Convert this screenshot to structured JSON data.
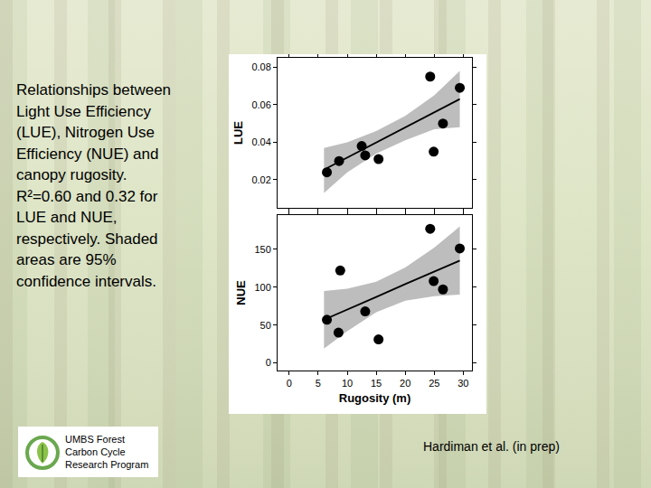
{
  "slide": {
    "caption": [
      "Relationships between",
      "Light Use Efficiency",
      "(LUE), Nitrogen Use",
      "Efficiency (NUE) and",
      "canopy rugosity.",
      "R²=0.60 and 0.32 for",
      "LUE and NUE,",
      "respectively. Shaded",
      "areas are 95%",
      "confidence intervals."
    ],
    "logo": [
      "UMBS Forest",
      "Carbon Cycle",
      "Research Program"
    ],
    "citation": "Hardiman et al. (in prep)"
  },
  "chart_data": [
    {
      "type": "scatter",
      "ylabel": "LUE",
      "color": "#000000",
      "marker": "circle",
      "grid": false,
      "tick_labels": "y",
      "x": [
        6.5,
        8.6,
        12.5,
        13.1,
        15.4,
        24.3,
        24.9,
        26.5,
        29.4
      ],
      "values": [
        0.024,
        0.03,
        0.038,
        0.033,
        0.031,
        0.075,
        0.035,
        0.05,
        0.069
      ],
      "fit_x": [
        6,
        10,
        15,
        20,
        25,
        29.4
      ],
      "fit_values": [
        0.0254,
        0.0318,
        0.0399,
        0.0479,
        0.056,
        0.063
      ],
      "band_lower": [
        0.013,
        0.024,
        0.034,
        0.041,
        0.047,
        0.048
      ],
      "band_upper": [
        0.037,
        0.04,
        0.046,
        0.054,
        0.065,
        0.078
      ],
      "xlim": [
        -2,
        31.5
      ],
      "xticks": [
        0,
        5,
        10,
        15,
        20,
        25,
        30
      ],
      "ylim": [
        0.005,
        0.085
      ],
      "yticks": [
        0.02,
        0.04,
        0.06,
        0.08
      ]
    },
    {
      "type": "scatter",
      "ylabel": "NUE",
      "xlabel": "Rugosity (m)",
      "color": "#000000",
      "marker": "circle",
      "grid": false,
      "x": [
        6.5,
        8.5,
        8.8,
        13.1,
        15.4,
        24.3,
        24.9,
        26.5,
        29.4
      ],
      "values": [
        57,
        40,
        122,
        68,
        31,
        177,
        108,
        97,
        151
      ],
      "fit_x": [
        6,
        10,
        15,
        20,
        25,
        29.4
      ],
      "fit_values": [
        57,
        70,
        87,
        104,
        120,
        135
      ],
      "band_lower": [
        19,
        42,
        67,
        82,
        88,
        90
      ],
      "band_upper": [
        95,
        98,
        107,
        126,
        152,
        180
      ],
      "xlim": [
        -2,
        31.5
      ],
      "xticks": [
        0,
        5,
        10,
        15,
        20,
        25,
        30
      ],
      "ylim": [
        -10,
        195
      ],
      "yticks": [
        0,
        50,
        100,
        150
      ]
    }
  ]
}
